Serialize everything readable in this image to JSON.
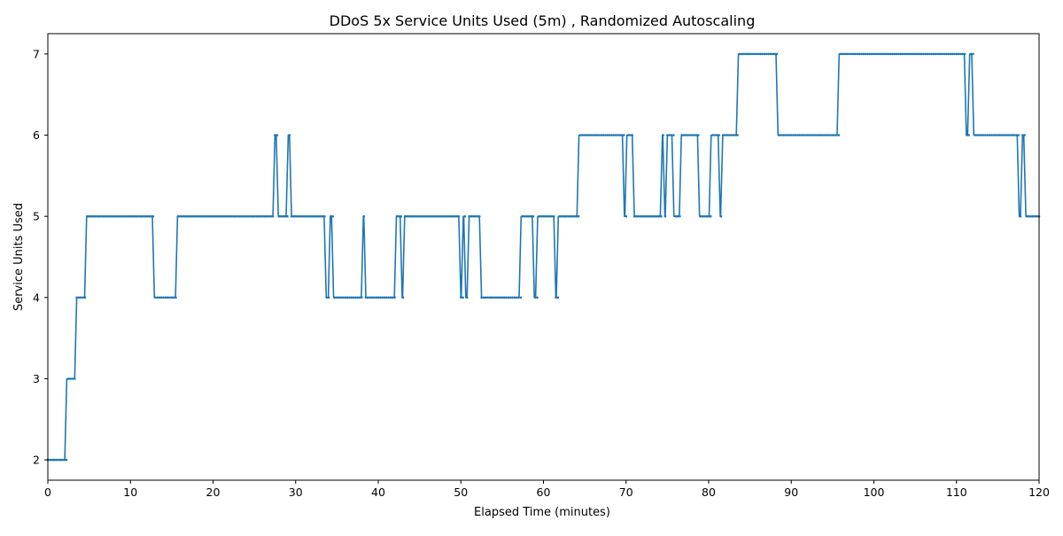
{
  "chart_data": {
    "type": "line",
    "title": "DDoS 5x Service Units Used (5m) , Randomized Autoscaling",
    "xlabel": "Elapsed Time (minutes)",
    "ylabel": "Service Units Used",
    "xlim": [
      0,
      120
    ],
    "ylim": [
      1.75,
      7.25
    ],
    "xticks": [
      0,
      10,
      20,
      30,
      40,
      50,
      60,
      70,
      80,
      90,
      100,
      110,
      120
    ],
    "yticks": [
      2,
      3,
      4,
      5,
      6,
      7
    ],
    "grid": false,
    "legend": "none",
    "series": [
      {
        "color": "#1f77b4",
        "marker": "dot",
        "steps": [
          [
            0,
            2
          ],
          [
            2.3,
            3
          ],
          [
            3.5,
            4
          ],
          [
            4.7,
            5
          ],
          [
            12.9,
            4
          ],
          [
            15.7,
            5
          ],
          [
            27.5,
            6
          ],
          [
            27.9,
            5
          ],
          [
            29.1,
            6
          ],
          [
            29.5,
            5
          ],
          [
            33.7,
            4
          ],
          [
            34.2,
            5
          ],
          [
            34.6,
            4
          ],
          [
            38.2,
            5
          ],
          [
            38.5,
            4
          ],
          [
            42.2,
            5
          ],
          [
            42.9,
            4
          ],
          [
            43.2,
            5
          ],
          [
            50.0,
            4
          ],
          [
            50.3,
            5
          ],
          [
            50.6,
            4
          ],
          [
            51.0,
            5
          ],
          [
            52.5,
            4
          ],
          [
            57.3,
            5
          ],
          [
            58.9,
            4
          ],
          [
            59.3,
            5
          ],
          [
            61.5,
            4
          ],
          [
            61.8,
            5
          ],
          [
            64.3,
            6
          ],
          [
            69.8,
            5
          ],
          [
            70.1,
            6
          ],
          [
            71.0,
            5
          ],
          [
            74.4,
            6
          ],
          [
            74.7,
            5
          ],
          [
            75.0,
            6
          ],
          [
            75.8,
            5
          ],
          [
            76.7,
            6
          ],
          [
            78.9,
            5
          ],
          [
            80.3,
            6
          ],
          [
            81.4,
            5
          ],
          [
            81.7,
            6
          ],
          [
            83.6,
            7
          ],
          [
            88.4,
            6
          ],
          [
            95.8,
            7
          ],
          [
            111.2,
            6
          ],
          [
            111.6,
            7
          ],
          [
            112.1,
            6
          ],
          [
            117.6,
            5
          ],
          [
            118.0,
            6
          ],
          [
            118.4,
            5
          ],
          [
            120,
            5
          ]
        ]
      }
    ]
  }
}
